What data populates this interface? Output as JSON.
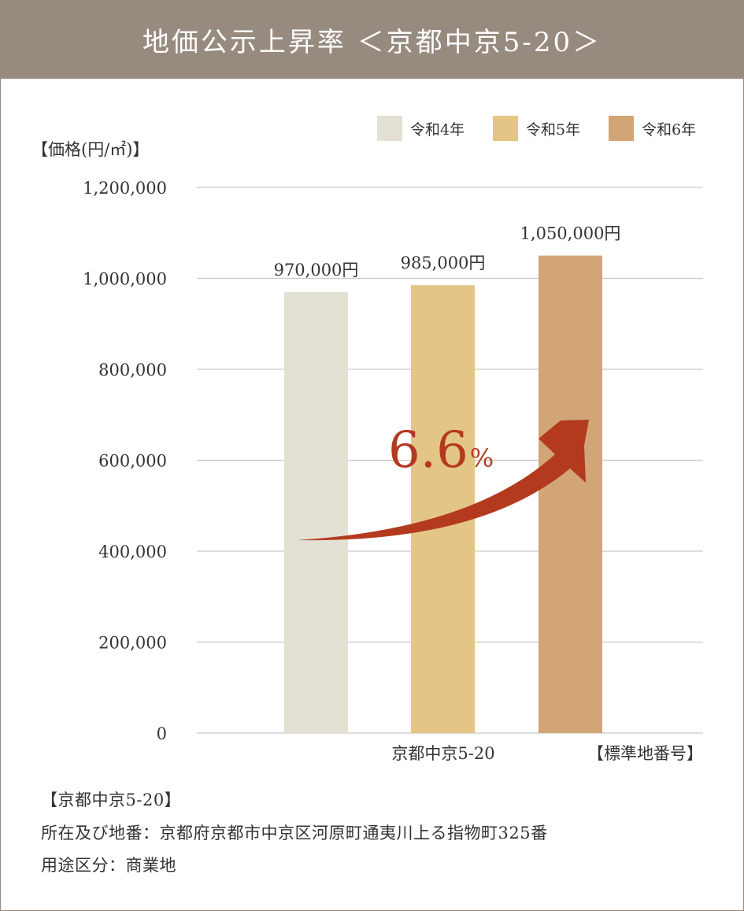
{
  "header": {
    "title": "地価公示上昇率 ＜京都中京5-20＞"
  },
  "chart_data": {
    "type": "bar",
    "ylabel": "【価格(円/㎡)】",
    "ylim": [
      0,
      1200000
    ],
    "yticks": [
      "1,200,000",
      "1,000,000",
      "800,000",
      "600,000",
      "400,000",
      "200,000",
      "0"
    ],
    "yvalues": [
      1200000,
      1000000,
      800000,
      600000,
      400000,
      200000,
      0
    ],
    "category": "京都中京5-20",
    "xlabel_right": "【標準地番号】",
    "series": [
      {
        "name": "令和4年",
        "value": 970000,
        "label": "970,000円",
        "color": "#e3e0d4"
      },
      {
        "name": "令和5年",
        "value": 985000,
        "label": "985,000円",
        "color": "#e3c686"
      },
      {
        "name": "令和6年",
        "value": 1050000,
        "label": "1,050,000円",
        "color": "#d2a577"
      }
    ],
    "annotation": {
      "value": "6.6",
      "unit": "%",
      "color": "#b33a1f"
    },
    "grid": true,
    "legend": "top-right"
  },
  "info": {
    "title": "【京都中京5-20】",
    "location": "所在及び地番：京都府京都市中京区河原町通夷川上る指物町325番",
    "use": "用途区分：商業地"
  }
}
